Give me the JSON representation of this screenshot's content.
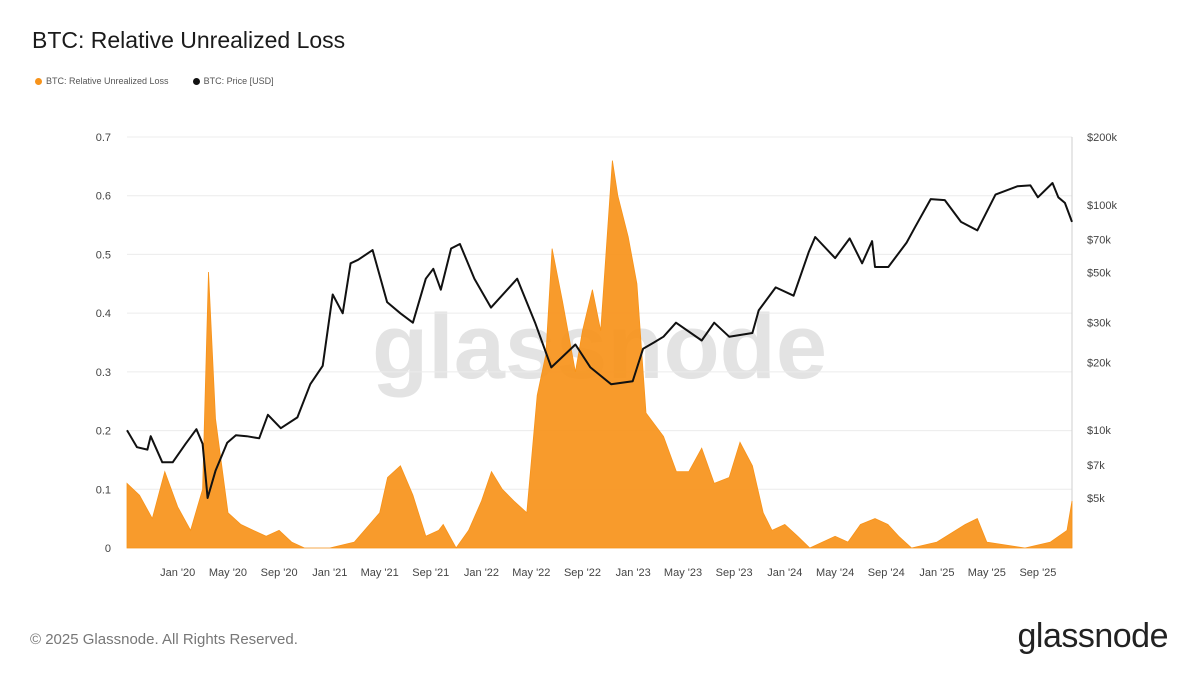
{
  "chart_data": {
    "type": "area",
    "title": "BTC: Relative Unrealized Loss",
    "watermark": "glassnode",
    "xlabels": [
      "Jan '20",
      "May '20",
      "Sep '20",
      "Jan '21",
      "May '21",
      "Sep '21",
      "Jan '22",
      "May '22",
      "Sep '22",
      "Jan '23",
      "May '23",
      "Sep '23",
      "Jan '24",
      "May '24",
      "Sep '24",
      "Jan '25",
      "May '25",
      "Sep '25"
    ],
    "y_left": {
      "min": 0,
      "max": 0.7,
      "ticks": [
        "0",
        "0.1",
        "0.2",
        "0.3",
        "0.4",
        "0.5",
        "0.6",
        "0.7"
      ]
    },
    "y_right": {
      "scale": "log",
      "ticks": [
        {
          "value": 5000,
          "label": "$5k"
        },
        {
          "value": 7000,
          "label": "$7k"
        },
        {
          "value": 10000,
          "label": "$10k"
        },
        {
          "value": 20000,
          "label": "$20k"
        },
        {
          "value": 30000,
          "label": "$30k"
        },
        {
          "value": 50000,
          "label": "$50k"
        },
        {
          "value": 70000,
          "label": "$70k"
        },
        {
          "value": 100000,
          "label": "$100k"
        },
        {
          "value": 200000,
          "label": "$200k"
        }
      ]
    },
    "series": [
      {
        "name": "BTC: Relative Unrealized Loss",
        "color": "#f7931a",
        "axis": "left",
        "points": [
          [
            "2019-09-01",
            0.11
          ],
          [
            "2019-10-01",
            0.09
          ],
          [
            "2019-11-01",
            0.05
          ],
          [
            "2019-12-01",
            0.13
          ],
          [
            "2020-01-01",
            0.07
          ],
          [
            "2020-02-01",
            0.03
          ],
          [
            "2020-03-01",
            0.1
          ],
          [
            "2020-03-15",
            0.47
          ],
          [
            "2020-04-01",
            0.22
          ],
          [
            "2020-05-01",
            0.06
          ],
          [
            "2020-06-01",
            0.04
          ],
          [
            "2020-07-01",
            0.03
          ],
          [
            "2020-08-01",
            0.02
          ],
          [
            "2020-09-01",
            0.03
          ],
          [
            "2020-10-01",
            0.01
          ],
          [
            "2020-11-01",
            0.0
          ],
          [
            "2021-01-01",
            0.0
          ],
          [
            "2021-03-01",
            0.01
          ],
          [
            "2021-05-01",
            0.06
          ],
          [
            "2021-05-20",
            0.12
          ],
          [
            "2021-06-20",
            0.14
          ],
          [
            "2021-07-20",
            0.09
          ],
          [
            "2021-08-20",
            0.02
          ],
          [
            "2021-09-20",
            0.03
          ],
          [
            "2021-10-01",
            0.04
          ],
          [
            "2021-11-01",
            0.0
          ],
          [
            "2021-12-01",
            0.03
          ],
          [
            "2022-01-01",
            0.08
          ],
          [
            "2022-01-25",
            0.13
          ],
          [
            "2022-02-20",
            0.1
          ],
          [
            "2022-03-20",
            0.08
          ],
          [
            "2022-04-20",
            0.06
          ],
          [
            "2022-05-15",
            0.26
          ],
          [
            "2022-06-05",
            0.33
          ],
          [
            "2022-06-20",
            0.51
          ],
          [
            "2022-07-15",
            0.42
          ],
          [
            "2022-08-15",
            0.3
          ],
          [
            "2022-09-01",
            0.37
          ],
          [
            "2022-09-25",
            0.44
          ],
          [
            "2022-10-15",
            0.37
          ],
          [
            "2022-11-12",
            0.66
          ],
          [
            "2022-11-25",
            0.6
          ],
          [
            "2022-12-20",
            0.53
          ],
          [
            "2023-01-10",
            0.45
          ],
          [
            "2023-02-01",
            0.23
          ],
          [
            "2023-03-15",
            0.19
          ],
          [
            "2023-04-15",
            0.13
          ],
          [
            "2023-05-15",
            0.13
          ],
          [
            "2023-06-15",
            0.17
          ],
          [
            "2023-07-15",
            0.11
          ],
          [
            "2023-08-20",
            0.12
          ],
          [
            "2023-09-15",
            0.18
          ],
          [
            "2023-10-15",
            0.14
          ],
          [
            "2023-11-10",
            0.06
          ],
          [
            "2023-12-01",
            0.03
          ],
          [
            "2024-01-01",
            0.04
          ],
          [
            "2024-02-01",
            0.02
          ],
          [
            "2024-03-01",
            0.0
          ],
          [
            "2024-05-01",
            0.02
          ],
          [
            "2024-06-01",
            0.01
          ],
          [
            "2024-07-01",
            0.04
          ],
          [
            "2024-08-05",
            0.05
          ],
          [
            "2024-09-05",
            0.04
          ],
          [
            "2024-10-01",
            0.02
          ],
          [
            "2024-11-01",
            0.0
          ],
          [
            "2025-01-01",
            0.01
          ],
          [
            "2025-03-10",
            0.04
          ],
          [
            "2025-04-08",
            0.05
          ],
          [
            "2025-05-01",
            0.01
          ],
          [
            "2025-08-01",
            0.0
          ],
          [
            "2025-10-01",
            0.01
          ],
          [
            "2025-11-10",
            0.03
          ],
          [
            "2025-11-22",
            0.08
          ]
        ]
      },
      {
        "name": "BTC: Price [USD]",
        "color": "#111111",
        "axis": "right",
        "points": [
          [
            "2019-09-01",
            10000
          ],
          [
            "2019-09-25",
            8400
          ],
          [
            "2019-10-20",
            8200
          ],
          [
            "2019-10-28",
            9400
          ],
          [
            "2019-11-25",
            7200
          ],
          [
            "2019-12-20",
            7200
          ],
          [
            "2020-01-20",
            8700
          ],
          [
            "2020-02-15",
            10100
          ],
          [
            "2020-03-01",
            8700
          ],
          [
            "2020-03-13",
            5000
          ],
          [
            "2020-04-01",
            6600
          ],
          [
            "2020-04-29",
            8800
          ],
          [
            "2020-05-20",
            9500
          ],
          [
            "2020-06-15",
            9400
          ],
          [
            "2020-07-15",
            9200
          ],
          [
            "2020-08-05",
            11700
          ],
          [
            "2020-09-05",
            10200
          ],
          [
            "2020-10-15",
            11400
          ],
          [
            "2020-11-15",
            16000
          ],
          [
            "2020-12-15",
            19300
          ],
          [
            "2021-01-08",
            40000
          ],
          [
            "2021-02-01",
            33000
          ],
          [
            "2021-02-20",
            55000
          ],
          [
            "2021-03-10",
            57000
          ],
          [
            "2021-04-14",
            63000
          ],
          [
            "2021-05-19",
            37000
          ],
          [
            "2021-06-20",
            33000
          ],
          [
            "2021-07-20",
            30000
          ],
          [
            "2021-08-20",
            47000
          ],
          [
            "2021-09-07",
            52000
          ],
          [
            "2021-09-25",
            42000
          ],
          [
            "2021-10-20",
            64000
          ],
          [
            "2021-11-10",
            67000
          ],
          [
            "2021-12-15",
            47000
          ],
          [
            "2022-01-24",
            35000
          ],
          [
            "2022-03-28",
            47000
          ],
          [
            "2022-05-10",
            30000
          ],
          [
            "2022-06-18",
            19000
          ],
          [
            "2022-08-15",
            24000
          ],
          [
            "2022-09-20",
            19000
          ],
          [
            "2022-11-09",
            16000
          ],
          [
            "2022-12-31",
            16500
          ],
          [
            "2023-01-25",
            23000
          ],
          [
            "2023-02-20",
            24500
          ],
          [
            "2023-03-15",
            26000
          ],
          [
            "2023-04-14",
            30000
          ],
          [
            "2023-06-15",
            25000
          ],
          [
            "2023-07-15",
            30000
          ],
          [
            "2023-08-20",
            26000
          ],
          [
            "2023-10-15",
            27000
          ],
          [
            "2023-10-30",
            34000
          ],
          [
            "2023-12-10",
            43000
          ],
          [
            "2024-01-22",
            39500
          ],
          [
            "2024-02-28",
            62000
          ],
          [
            "2024-03-14",
            72000
          ],
          [
            "2024-05-01",
            58000
          ],
          [
            "2024-06-05",
            71000
          ],
          [
            "2024-07-05",
            55000
          ],
          [
            "2024-07-29",
            69000
          ],
          [
            "2024-08-05",
            53000
          ],
          [
            "2024-09-06",
            53000
          ],
          [
            "2024-10-20",
            68000
          ],
          [
            "2024-11-10",
            80000
          ],
          [
            "2024-12-17",
            106000
          ],
          [
            "2025-01-20",
            105000
          ],
          [
            "2025-02-28",
            84000
          ],
          [
            "2025-04-08",
            77000
          ],
          [
            "2025-05-22",
            111000
          ],
          [
            "2025-07-14",
            121000
          ],
          [
            "2025-08-14",
            122000
          ],
          [
            "2025-09-01",
            108000
          ],
          [
            "2025-10-06",
            125000
          ],
          [
            "2025-10-20",
            108000
          ],
          [
            "2025-11-05",
            102000
          ],
          [
            "2025-11-22",
            84000
          ]
        ]
      }
    ]
  },
  "header": {
    "title": "BTC: Relative Unrealized Loss"
  },
  "legend": {
    "loss": "BTC: Relative Unrealized Loss",
    "price": "BTC: Price [USD]"
  },
  "colors": {
    "loss": "#f7931a",
    "price": "#111111"
  },
  "footer": {
    "copyright": "© 2025 Glassnode. All Rights Reserved.",
    "logo": "glassnode"
  }
}
